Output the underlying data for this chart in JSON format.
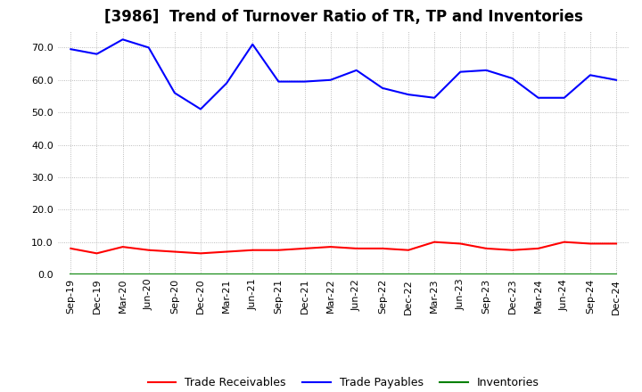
{
  "title": "[3986]  Trend of Turnover Ratio of TR, TP and Inventories",
  "x_labels": [
    "Sep-19",
    "Dec-19",
    "Mar-20",
    "Jun-20",
    "Sep-20",
    "Dec-20",
    "Mar-21",
    "Jun-21",
    "Sep-21",
    "Dec-21",
    "Mar-22",
    "Jun-22",
    "Sep-22",
    "Dec-22",
    "Mar-23",
    "Jun-23",
    "Sep-23",
    "Dec-23",
    "Mar-24",
    "Jun-24",
    "Sep-24",
    "Dec-24"
  ],
  "trade_payables": [
    69.5,
    68.0,
    72.5,
    70.0,
    56.0,
    51.0,
    59.0,
    71.0,
    59.5,
    59.5,
    60.0,
    63.0,
    57.5,
    55.5,
    54.5,
    62.5,
    63.0,
    60.5,
    54.5,
    54.5,
    61.5,
    60.0
  ],
  "trade_receivables": [
    8.0,
    6.5,
    8.5,
    7.5,
    7.0,
    6.5,
    7.0,
    7.5,
    7.5,
    8.0,
    8.5,
    8.0,
    8.0,
    7.5,
    10.0,
    9.5,
    8.0,
    7.5,
    8.0,
    10.0,
    9.5,
    9.5
  ],
  "inventories": [
    0.0,
    0.0,
    0.0,
    0.0,
    0.0,
    0.0,
    0.0,
    0.0,
    0.0,
    0.0,
    0.0,
    0.0,
    0.0,
    0.0,
    0.0,
    0.0,
    0.0,
    0.0,
    0.0,
    0.0,
    0.0,
    0.0
  ],
  "ylim": [
    0,
    75
  ],
  "yticks": [
    0.0,
    10.0,
    20.0,
    30.0,
    40.0,
    50.0,
    60.0,
    70.0
  ],
  "color_tr": "#ff0000",
  "color_tp": "#0000ff",
  "color_inv": "#008000",
  "bg_color": "#ffffff",
  "grid_color": "#aaaaaa",
  "title_fontsize": 12,
  "tick_fontsize": 8,
  "legend_labels": [
    "Trade Receivables",
    "Trade Payables",
    "Inventories"
  ]
}
